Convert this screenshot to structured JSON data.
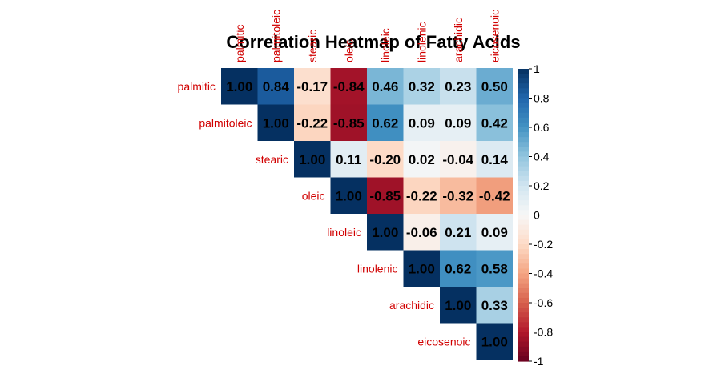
{
  "chart_data": {
    "type": "heatmap",
    "title": "Correlation Heatmap of Fatty Acids",
    "variables": [
      "palmitic",
      "palmitoleic",
      "stearic",
      "oleic",
      "linoleic",
      "linolenic",
      "arachidic",
      "eicosenoic"
    ],
    "matrix": [
      [
        1.0,
        0.84,
        -0.17,
        -0.84,
        0.46,
        0.32,
        0.23,
        0.5
      ],
      [
        null,
        1.0,
        -0.22,
        -0.85,
        0.62,
        0.09,
        0.09,
        0.42
      ],
      [
        null,
        null,
        1.0,
        0.11,
        -0.2,
        0.02,
        -0.04,
        0.14
      ],
      [
        null,
        null,
        null,
        1.0,
        -0.85,
        -0.22,
        -0.32,
        -0.42
      ],
      [
        null,
        null,
        null,
        null,
        1.0,
        -0.06,
        0.21,
        0.09
      ],
      [
        null,
        null,
        null,
        null,
        null,
        1.0,
        0.62,
        0.58
      ],
      [
        null,
        null,
        null,
        null,
        null,
        null,
        1.0,
        0.33
      ],
      [
        null,
        null,
        null,
        null,
        null,
        null,
        null,
        1.0
      ]
    ],
    "value_labels": [
      [
        "1.00",
        "0.84",
        "-0.17",
        "-0.84",
        "0.46",
        "0.32",
        "0.23",
        "0.50"
      ],
      [
        "",
        "1.00",
        "-0.22",
        "-0.85",
        "0.62",
        "0.09",
        "0.09",
        "0.42"
      ],
      [
        "",
        "",
        "1.00",
        "0.11",
        "-0.20",
        "0.02",
        "-0.04",
        "0.14"
      ],
      [
        "",
        "",
        "",
        "1.00",
        "-0.85",
        "-0.22",
        "-0.32",
        "-0.42"
      ],
      [
        "",
        "",
        "",
        "",
        "1.00",
        "-0.06",
        "0.21",
        "0.09"
      ],
      [
        "",
        "",
        "",
        "",
        "",
        "1.00",
        "0.62",
        "0.58"
      ],
      [
        "",
        "",
        "",
        "",
        "",
        "",
        "1.00",
        "0.33"
      ],
      [
        "",
        "",
        "",
        "",
        "",
        "",
        "",
        "1.00"
      ]
    ],
    "color_range": [
      -1,
      1
    ],
    "colorbar_ticks": [
      "1",
      "0.8",
      "0.6",
      "0.4",
      "0.2",
      "0",
      "-0.2",
      "-0.4",
      "-0.6",
      "-0.8",
      "-1"
    ],
    "colors": {
      "negative_end": "#67001f",
      "mid": "#f7f7f7",
      "positive_end": "#053061",
      "label_color": "#d10000"
    },
    "layout": "upper-triangle",
    "legend_placement": "right"
  }
}
